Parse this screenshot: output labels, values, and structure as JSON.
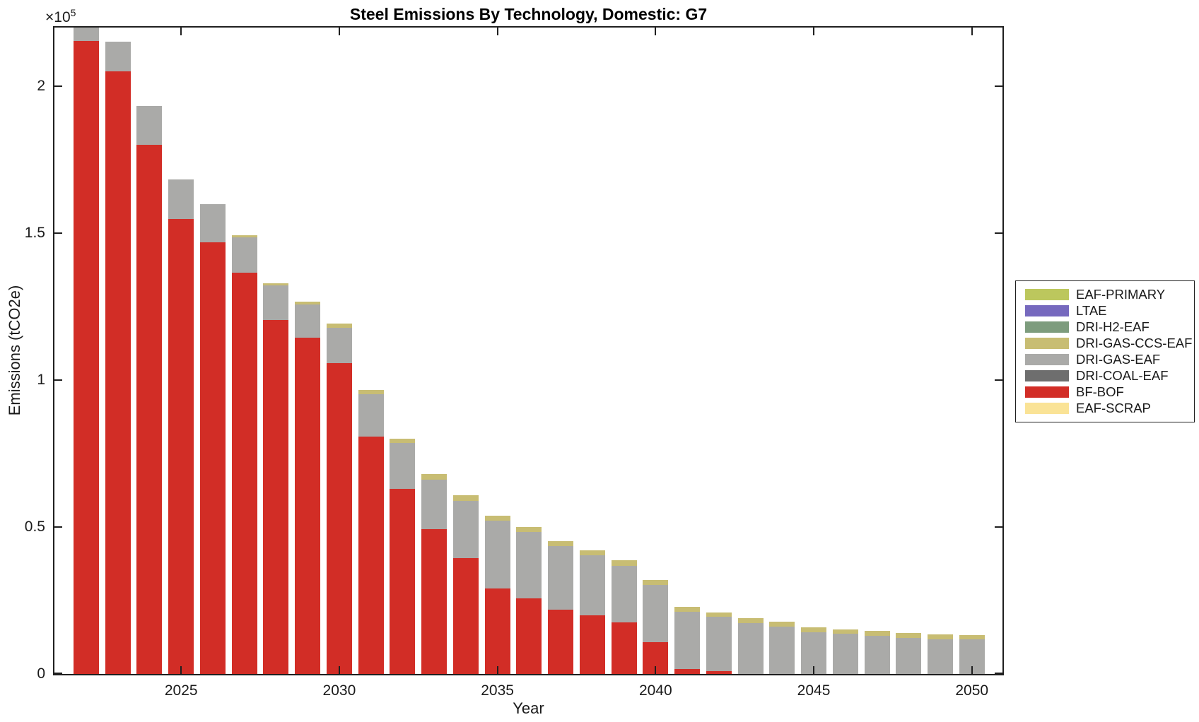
{
  "title": "Steel Emissions By Technology, Domestic: G7",
  "xlabel": "Year",
  "ylabel": "Emissions (tCO2e)",
  "y_multiplier": {
    "base": "×10",
    "exponent": "5"
  },
  "chart_data": {
    "type": "bar",
    "stacked": true,
    "grid": false,
    "ylim": [
      0,
      220000
    ],
    "yticks": [
      0,
      50000,
      100000,
      150000,
      200000
    ],
    "ytick_labels": [
      "0",
      "0.5",
      "1",
      "1.5",
      "2"
    ],
    "xticks": [
      2025,
      2030,
      2035,
      2040,
      2045,
      2050
    ],
    "clipping_note": "2022 stack total exceeds the y-axis maximum and is clipped at the top of the axes",
    "legend_position": "right-outside",
    "legend_order": [
      "EAF-PRIMARY",
      "LTAE",
      "DRI-H2-EAF",
      "DRI-GAS-CCS-EAF",
      "DRI-GAS-EAF",
      "DRI-COAL-EAF",
      "BF-BOF",
      "EAF-SCRAP"
    ],
    "stack_order_bottom_to_top": [
      "EAF-SCRAP",
      "BF-BOF",
      "DRI-COAL-EAF",
      "DRI-GAS-EAF",
      "DRI-GAS-CCS-EAF",
      "DRI-H2-EAF",
      "LTAE",
      "EAF-PRIMARY"
    ],
    "x": [
      2022,
      2023,
      2024,
      2025,
      2026,
      2027,
      2028,
      2029,
      2030,
      2031,
      2032,
      2033,
      2034,
      2035,
      2036,
      2037,
      2038,
      2039,
      2040,
      2041,
      2042,
      2043,
      2044,
      2045,
      2046,
      2047,
      2048,
      2049,
      2050
    ],
    "series": [
      {
        "name": "EAF-SCRAP",
        "color": "#fae396",
        "values": [
          0,
          0,
          0,
          0,
          0,
          0,
          0,
          0,
          0,
          0,
          0,
          0,
          0,
          0,
          0,
          0,
          0,
          0,
          0,
          0,
          0,
          0,
          0,
          0,
          0,
          0,
          0,
          0,
          0
        ]
      },
      {
        "name": "BF-BOF",
        "color": "#d22d26",
        "values": [
          215500,
          205000,
          180000,
          154800,
          147000,
          136500,
          120500,
          114500,
          105900,
          80700,
          62900,
          49300,
          39400,
          29200,
          25800,
          21900,
          19900,
          17600,
          10900,
          1600,
          900,
          0,
          0,
          0,
          0,
          0,
          0,
          0,
          0
        ]
      },
      {
        "name": "DRI-COAL-EAF",
        "color": "#6e6e6e",
        "values": [
          0,
          0,
          0,
          0,
          0,
          0,
          0,
          0,
          0,
          0,
          0,
          0,
          0,
          0,
          0,
          0,
          0,
          0,
          0,
          0,
          0,
          0,
          0,
          0,
          0,
          0,
          0,
          0,
          0
        ]
      },
      {
        "name": "DRI-GAS-EAF",
        "color": "#aaaaa8",
        "values": [
          11500,
          10200,
          13300,
          13500,
          13000,
          12200,
          11700,
          11200,
          12000,
          14600,
          15700,
          16900,
          19600,
          22900,
          22500,
          21600,
          20400,
          19300,
          19400,
          19500,
          18500,
          17300,
          16000,
          14100,
          13600,
          13000,
          12300,
          11800,
          11900
        ]
      },
      {
        "name": "DRI-GAS-CCS-EAF",
        "color": "#c8bd73",
        "values": [
          0,
          0,
          0,
          0,
          0,
          600,
          800,
          1100,
          1300,
          1300,
          1400,
          1900,
          1900,
          1700,
          1700,
          1700,
          1800,
          1800,
          1800,
          1800,
          1600,
          1700,
          1900,
          1700,
          1600,
          1700,
          1700,
          1600,
          1400
        ]
      },
      {
        "name": "DRI-H2-EAF",
        "color": "#7d9c7d",
        "values": [
          0,
          0,
          0,
          0,
          0,
          0,
          0,
          0,
          0,
          0,
          0,
          0,
          0,
          0,
          0,
          0,
          0,
          0,
          0,
          0,
          0,
          0,
          0,
          0,
          0,
          0,
          0,
          0,
          0
        ]
      },
      {
        "name": "LTAE",
        "color": "#7669be",
        "values": [
          0,
          0,
          0,
          0,
          0,
          0,
          0,
          0,
          0,
          0,
          0,
          0,
          0,
          0,
          0,
          0,
          0,
          0,
          0,
          0,
          0,
          0,
          0,
          0,
          0,
          0,
          0,
          0,
          0
        ]
      },
      {
        "name": "EAF-PRIMARY",
        "color": "#bcc75d",
        "values": [
          0,
          0,
          0,
          0,
          0,
          0,
          0,
          0,
          0,
          0,
          0,
          0,
          0,
          0,
          0,
          0,
          0,
          0,
          0,
          0,
          0,
          0,
          0,
          0,
          0,
          0,
          0,
          0,
          0
        ]
      }
    ]
  }
}
